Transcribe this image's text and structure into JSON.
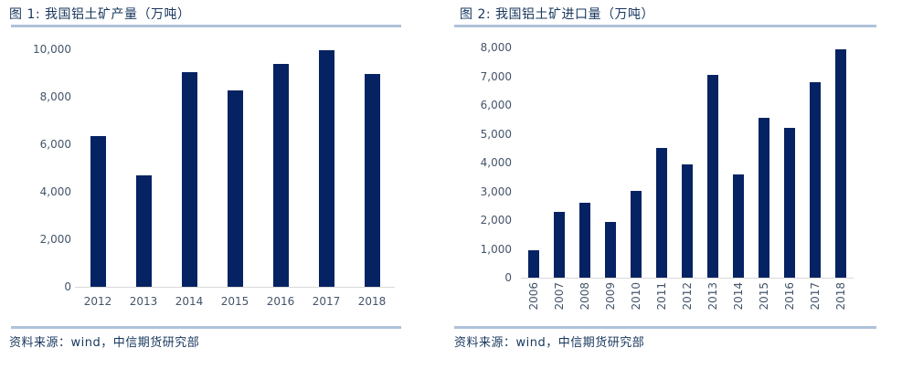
{
  "colors": {
    "bar_navy": "#052263",
    "title_navy": "#17375e",
    "divider_blue": "#aec3da",
    "axis_line_gray": "#d9d9d9",
    "tick_text_gray": "#44546a"
  },
  "chart_data": [
    {
      "type": "bar",
      "title": "图 1: 我国铝土矿产量（万吨）",
      "source": "资料来源：wind，中信期货研究部",
      "categories": [
        "2012",
        "2013",
        "2014",
        "2015",
        "2016",
        "2017",
        "2018"
      ],
      "values": [
        6350,
        4700,
        9050,
        8250,
        9400,
        9950,
        8950
      ],
      "xlabel": "",
      "ylabel": "",
      "ylim": [
        0,
        10000
      ],
      "ytick_step": 2000,
      "grid": false,
      "legend": "none",
      "bar_color": "#052263",
      "x_label_rotation": 0
    },
    {
      "type": "bar",
      "title": "图 2: 我国铝土矿进口量（万吨）",
      "source": "资料来源：wind，中信期货研究部",
      "categories": [
        "2006",
        "2007",
        "2008",
        "2009",
        "2010",
        "2011",
        "2012",
        "2013",
        "2014",
        "2015",
        "2016",
        "2017",
        "2018"
      ],
      "values": [
        950,
        2300,
        2600,
        1950,
        3000,
        4500,
        3950,
        7050,
        3600,
        5550,
        5200,
        6800,
        7950
      ],
      "xlabel": "",
      "ylabel": "",
      "ylim": [
        0,
        8000
      ],
      "ytick_step": 1000,
      "grid": false,
      "legend": "none",
      "bar_color": "#052263",
      "x_label_rotation": -90
    }
  ]
}
